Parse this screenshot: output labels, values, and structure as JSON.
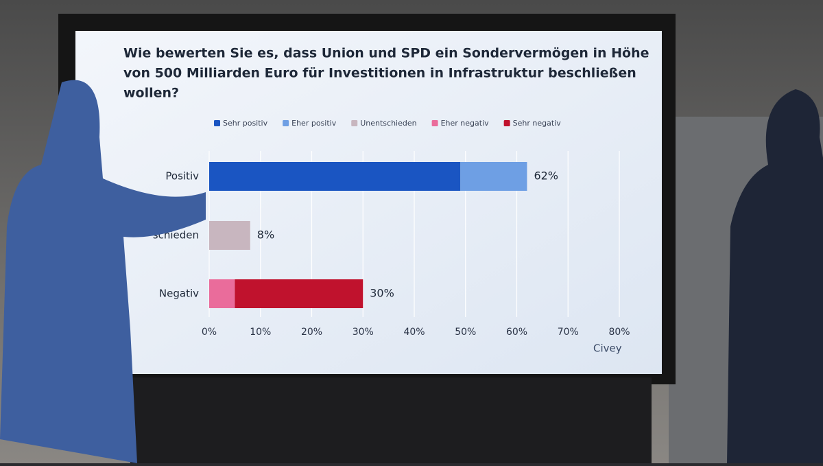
{
  "chart_data": {
    "type": "stacked-bar-horizontal",
    "title": [
      "Wie bewerten Sie es, dass Union und SPD ein Sondervermögen in Höhe",
      "von 500 Milliarden Euro für Investitionen in Infrastruktur beschließen",
      "wollen?"
    ],
    "categories": [
      "Positiv",
      "schieden",
      "Negativ"
    ],
    "series": [
      {
        "name": "Sehr positiv",
        "color": "#1a55c2",
        "values": [
          49,
          null,
          null
        ]
      },
      {
        "name": "Eher positiv",
        "color": "#6e9fe4",
        "values": [
          13,
          null,
          null
        ]
      },
      {
        "name": "Unentschieden",
        "color": "#c8b6bf",
        "values": [
          null,
          8,
          null
        ]
      },
      {
        "name": "Eher negativ",
        "color": "#ea6c9b",
        "values": [
          null,
          null,
          5
        ]
      },
      {
        "name": "Sehr negativ",
        "color": "#c0122d",
        "values": [
          null,
          null,
          25
        ]
      }
    ],
    "totals": [
      62,
      8,
      30
    ],
    "total_labels": [
      "62%",
      "8%",
      "30%"
    ],
    "xlim": [
      0,
      80
    ],
    "xticks": [
      {
        "value": 0,
        "label": "0%"
      },
      {
        "value": 10,
        "label": "10%"
      },
      {
        "value": 20,
        "label": "20%"
      },
      {
        "value": 30,
        "label": "30%"
      },
      {
        "value": 40,
        "label": "40%"
      },
      {
        "value": 50,
        "label": "50%"
      },
      {
        "value": 60,
        "label": "60%"
      },
      {
        "value": 70,
        "label": "70%"
      },
      {
        "value": 80,
        "label": "80%"
      }
    ],
    "grid": true,
    "source": "Civey"
  }
}
